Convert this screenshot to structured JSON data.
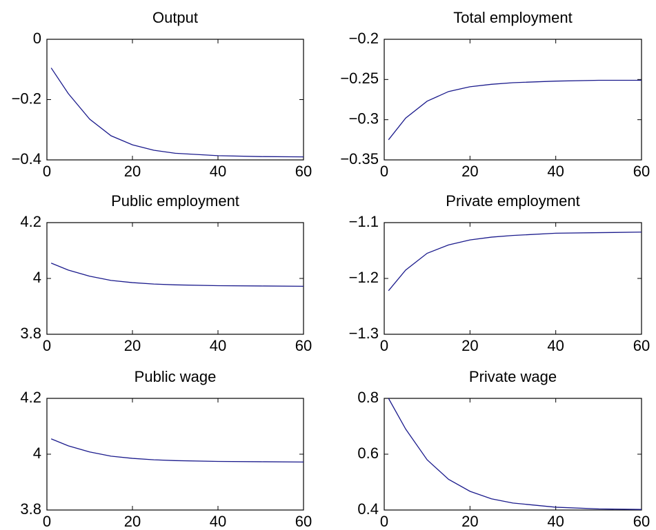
{
  "chart_data": [
    {
      "type": "line",
      "title": "Output",
      "x": [
        1,
        5,
        10,
        15,
        20,
        25,
        30,
        40,
        50,
        60
      ],
      "series": [
        {
          "color": "#1a1a8c",
          "values": [
            -0.095,
            -0.18,
            -0.265,
            -0.32,
            -0.35,
            -0.368,
            -0.378,
            -0.386,
            -0.389,
            -0.39
          ]
        }
      ],
      "xlim": [
        0,
        60
      ],
      "xticks": [
        0,
        20,
        40,
        60
      ],
      "ylim": [
        -0.4,
        0
      ],
      "yticks": [
        {
          "value": -0.4,
          "label": "−0.4"
        },
        {
          "value": -0.2,
          "label": "−0.2"
        },
        0
      ]
    },
    {
      "type": "line",
      "title": "Total employment",
      "x": [
        1,
        5,
        10,
        15,
        20,
        25,
        30,
        40,
        50,
        60
      ],
      "series": [
        {
          "color": "#1a1a8c",
          "values": [
            -0.325,
            -0.298,
            -0.277,
            -0.265,
            -0.259,
            -0.256,
            -0.254,
            -0.252,
            -0.251,
            -0.251
          ]
        }
      ],
      "xlim": [
        0,
        60
      ],
      "xticks": [
        0,
        20,
        40,
        60
      ],
      "ylim": [
        -0.35,
        -0.2
      ],
      "yticks": [
        {
          "value": -0.35,
          "label": "−0.35"
        },
        {
          "value": -0.3,
          "label": "−0.3"
        },
        {
          "value": -0.25,
          "label": "−0.25"
        },
        {
          "value": -0.2,
          "label": "−0.2"
        }
      ]
    },
    {
      "type": "line",
      "title": "Public employment",
      "x": [
        1,
        5,
        10,
        15,
        20,
        25,
        30,
        40,
        50,
        60
      ],
      "series": [
        {
          "color": "#1a1a8c",
          "values": [
            4.055,
            4.03,
            4.008,
            3.993,
            3.985,
            3.98,
            3.977,
            3.974,
            3.973,
            3.972
          ]
        }
      ],
      "xlim": [
        0,
        60
      ],
      "xticks": [
        0,
        20,
        40,
        60
      ],
      "ylim": [
        3.8,
        4.2
      ],
      "yticks": [
        3.8,
        4,
        4.2
      ]
    },
    {
      "type": "line",
      "title": "Private employment",
      "x": [
        1,
        5,
        10,
        15,
        20,
        25,
        30,
        40,
        50,
        60
      ],
      "series": [
        {
          "color": "#1a1a8c",
          "values": [
            -1.222,
            -1.185,
            -1.155,
            -1.14,
            -1.131,
            -1.126,
            -1.123,
            -1.119,
            -1.118,
            -1.117
          ]
        }
      ],
      "xlim": [
        0,
        60
      ],
      "xticks": [
        0,
        20,
        40,
        60
      ],
      "ylim": [
        -1.3,
        -1.1
      ],
      "yticks": [
        {
          "value": -1.3,
          "label": "−1.3"
        },
        {
          "value": -1.2,
          "label": "−1.2"
        },
        {
          "value": -1.1,
          "label": "−1.1"
        }
      ]
    },
    {
      "type": "line",
      "title": "Public wage",
      "x": [
        1,
        5,
        10,
        15,
        20,
        25,
        30,
        40,
        50,
        60
      ],
      "series": [
        {
          "color": "#1a1a8c",
          "values": [
            4.055,
            4.03,
            4.008,
            3.993,
            3.985,
            3.98,
            3.977,
            3.974,
            3.973,
            3.972
          ]
        }
      ],
      "xlim": [
        0,
        60
      ],
      "xticks": [
        0,
        20,
        40,
        60
      ],
      "ylim": [
        3.8,
        4.2
      ],
      "yticks": [
        3.8,
        4,
        4.2
      ]
    },
    {
      "type": "line",
      "title": "Private wage",
      "x": [
        1,
        5,
        10,
        15,
        20,
        25,
        30,
        40,
        50,
        60
      ],
      "series": [
        {
          "color": "#1a1a8c",
          "values": [
            0.8,
            0.69,
            0.58,
            0.51,
            0.467,
            0.44,
            0.425,
            0.41,
            0.404,
            0.402
          ]
        }
      ],
      "xlim": [
        0,
        60
      ],
      "xticks": [
        0,
        20,
        40,
        60
      ],
      "ylim": [
        0.4,
        0.8
      ],
      "yticks": [
        0.4,
        0.6,
        0.8
      ]
    }
  ]
}
